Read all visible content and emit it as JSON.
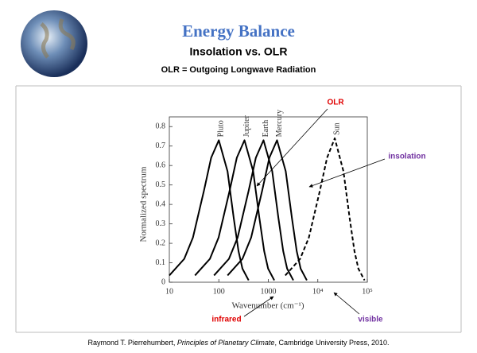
{
  "slide": {
    "title": "Energy Balance",
    "subtitle": "Insolation vs. OLR",
    "definition": "OLR = Outgoing Longwave Radiation",
    "citation": {
      "author": "Raymond T. Pierrehumbert, ",
      "book": "Principles of Planetary Climate",
      "rest": ", Cambridge University Press,  2010."
    }
  },
  "chart_data": {
    "type": "line",
    "x_label": "Wavenumber (cm⁻¹)",
    "y_label": "Normalized spectrum",
    "xscale": "log",
    "xlim": [
      10,
      100000
    ],
    "xticks": [
      10,
      100,
      1000,
      {
        "value": 10000,
        "label": "10⁴"
      },
      {
        "value": 100000,
        "label": "10⁵"
      }
    ],
    "ylim": [
      0,
      0.85
    ],
    "yticks": [
      0,
      0.1,
      0.2,
      0.3,
      0.4,
      0.5,
      0.6,
      0.7,
      0.8
    ],
    "series": [
      {
        "name": "Pluto",
        "color": "#000000",
        "line_style": "solid",
        "x": [
          10,
          20,
          30,
          50,
          70,
          100,
          150,
          200,
          250,
          300,
          400
        ],
        "values": [
          0.035,
          0.12,
          0.23,
          0.47,
          0.64,
          0.73,
          0.57,
          0.33,
          0.16,
          0.07,
          0.01
        ]
      },
      {
        "name": "Jupiter",
        "color": "#000000",
        "line_style": "solid",
        "x": [
          33,
          66,
          99,
          165,
          231,
          330,
          495,
          660,
          825,
          990,
          1320
        ],
        "values": [
          0.035,
          0.12,
          0.23,
          0.47,
          0.64,
          0.73,
          0.57,
          0.33,
          0.16,
          0.07,
          0.01
        ]
      },
      {
        "name": "Earth",
        "color": "#000000",
        "line_style": "solid",
        "x": [
          80,
          160,
          240,
          400,
          560,
          800,
          1200,
          1600,
          2000,
          2400,
          3200
        ],
        "values": [
          0.035,
          0.12,
          0.23,
          0.47,
          0.64,
          0.73,
          0.57,
          0.33,
          0.16,
          0.07,
          0.01
        ]
      },
      {
        "name": "Mercury",
        "color": "#000000",
        "line_style": "solid",
        "x": [
          150,
          300,
          450,
          750,
          1050,
          1500,
          2250,
          3000,
          3750,
          4500,
          6000
        ],
        "values": [
          0.035,
          0.12,
          0.23,
          0.47,
          0.64,
          0.73,
          0.57,
          0.33,
          0.16,
          0.07,
          0.01
        ]
      },
      {
        "name": "Sun",
        "color": "#000000",
        "line_style": "dashed",
        "x": [
          2200,
          4400,
          6600,
          11000,
          15400,
          22000,
          33000,
          44000,
          55000,
          66000,
          88000
        ],
        "values": [
          0.035,
          0.12,
          0.23,
          0.47,
          0.64,
          0.74,
          0.57,
          0.33,
          0.16,
          0.07,
          0.01
        ]
      }
    ],
    "annotations": [
      {
        "text": "OLR",
        "color": "#e00000"
      },
      {
        "text": "insolation",
        "color": "#7030a0"
      },
      {
        "text": "infrared",
        "color": "#e00000"
      },
      {
        "text": "visible",
        "color": "#7030a0"
      }
    ]
  }
}
